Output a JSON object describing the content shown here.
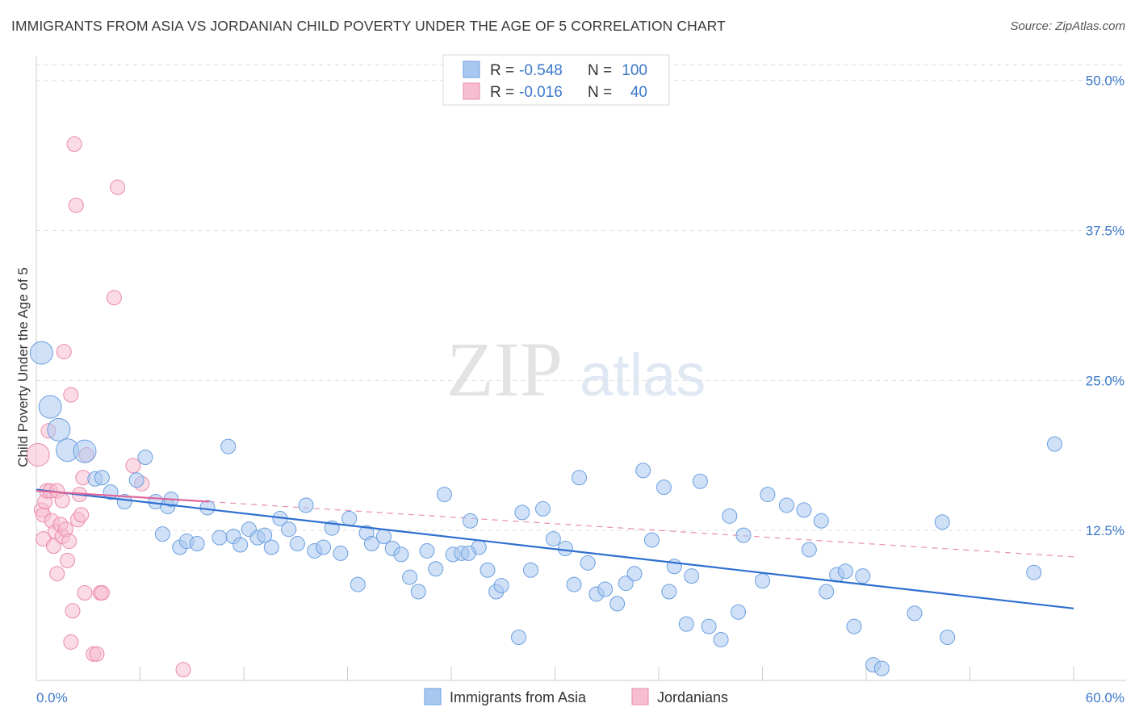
{
  "title": "IMMIGRANTS FROM ASIA VS JORDANIAN CHILD POVERTY UNDER THE AGE OF 5 CORRELATION CHART",
  "source": "Source: ZipAtlas.com",
  "watermark": {
    "zip": "ZIP",
    "atlas": "atlas"
  },
  "colors": {
    "blue_fill": "#a9c8f0",
    "blue_stroke": "#6a9fe0",
    "blue_line": "#2f6fd0",
    "pink_fill": "#f7bdd0",
    "pink_stroke": "#ea8aab",
    "pink_line": "#e0679a",
    "tick_text": "#3b78c9",
    "grid": "#dddddd"
  },
  "legend_box": {
    "rows": [
      {
        "r_label": "R =",
        "r_value": "-0.548",
        "n_label": "N =",
        "n_value": "100"
      },
      {
        "r_label": "R =",
        "r_value": "-0.016",
        "n_label": "N =",
        "n_value": "40"
      }
    ]
  },
  "bottom_legend": [
    {
      "label": "Immigrants from Asia"
    },
    {
      "label": "Jordanians"
    }
  ],
  "chart_data": {
    "type": "scatter",
    "title": "IMMIGRANTS FROM ASIA VS JORDANIAN CHILD POVERTY UNDER THE AGE OF 5 CORRELATION CHART",
    "xlabel": "",
    "ylabel": "Child Poverty Under the Age of 5",
    "xlim": [
      0,
      60
    ],
    "ylim": [
      0,
      52
    ],
    "x_tick_labels": [
      {
        "value": 0,
        "label": "0.0%"
      },
      {
        "value": 60,
        "label": "60.0%"
      }
    ],
    "y_tick_labels": [
      {
        "value": 12.5,
        "label": "12.5%"
      },
      {
        "value": 25,
        "label": "25.0%"
      },
      {
        "value": 37.5,
        "label": "37.5%"
      },
      {
        "value": 50,
        "label": "50.0%"
      }
    ],
    "series": [
      {
        "name": "Immigrants from Asia",
        "r": -0.548,
        "n": 100,
        "trend": {
          "x0": 0,
          "y0": 15.9,
          "x1": 60,
          "y1": 6.0,
          "dashed_extension": false
        },
        "points": [
          {
            "x": 0.3,
            "y": 27.3,
            "s": 2
          },
          {
            "x": 0.8,
            "y": 22.8,
            "s": 2
          },
          {
            "x": 1.3,
            "y": 20.9,
            "s": 2
          },
          {
            "x": 1.8,
            "y": 19.2,
            "s": 2
          },
          {
            "x": 2.8,
            "y": 19.1,
            "s": 2
          },
          {
            "x": 3.4,
            "y": 16.8,
            "s": 1
          },
          {
            "x": 3.8,
            "y": 16.9,
            "s": 1
          },
          {
            "x": 4.3,
            "y": 15.7,
            "s": 1
          },
          {
            "x": 5.1,
            "y": 14.9,
            "s": 1
          },
          {
            "x": 5.8,
            "y": 16.7,
            "s": 1
          },
          {
            "x": 6.3,
            "y": 18.6,
            "s": 1
          },
          {
            "x": 6.9,
            "y": 14.9,
            "s": 1
          },
          {
            "x": 7.3,
            "y": 12.2,
            "s": 1
          },
          {
            "x": 7.6,
            "y": 14.5,
            "s": 1
          },
          {
            "x": 7.8,
            "y": 15.1,
            "s": 1
          },
          {
            "x": 8.3,
            "y": 11.1,
            "s": 1
          },
          {
            "x": 8.7,
            "y": 11.6,
            "s": 1
          },
          {
            "x": 9.3,
            "y": 11.4,
            "s": 1
          },
          {
            "x": 9.9,
            "y": 14.4,
            "s": 1
          },
          {
            "x": 10.6,
            "y": 11.9,
            "s": 1
          },
          {
            "x": 11.1,
            "y": 19.5,
            "s": 1
          },
          {
            "x": 11.4,
            "y": 12.0,
            "s": 1
          },
          {
            "x": 11.8,
            "y": 11.3,
            "s": 1
          },
          {
            "x": 12.3,
            "y": 12.6,
            "s": 1
          },
          {
            "x": 12.8,
            "y": 11.9,
            "s": 1
          },
          {
            "x": 13.2,
            "y": 12.1,
            "s": 1
          },
          {
            "x": 13.6,
            "y": 11.1,
            "s": 1
          },
          {
            "x": 14.1,
            "y": 13.5,
            "s": 1
          },
          {
            "x": 14.6,
            "y": 12.6,
            "s": 1
          },
          {
            "x": 15.1,
            "y": 11.4,
            "s": 1
          },
          {
            "x": 15.6,
            "y": 14.6,
            "s": 1
          },
          {
            "x": 16.1,
            "y": 10.8,
            "s": 1
          },
          {
            "x": 16.6,
            "y": 11.1,
            "s": 1
          },
          {
            "x": 17.1,
            "y": 12.7,
            "s": 1
          },
          {
            "x": 17.6,
            "y": 10.6,
            "s": 1
          },
          {
            "x": 18.1,
            "y": 13.5,
            "s": 1
          },
          {
            "x": 18.6,
            "y": 8.0,
            "s": 1
          },
          {
            "x": 19.1,
            "y": 12.3,
            "s": 1
          },
          {
            "x": 19.4,
            "y": 11.4,
            "s": 1
          },
          {
            "x": 20.1,
            "y": 12.0,
            "s": 1
          },
          {
            "x": 20.6,
            "y": 11.0,
            "s": 1
          },
          {
            "x": 21.1,
            "y": 10.5,
            "s": 1
          },
          {
            "x": 21.6,
            "y": 8.6,
            "s": 1
          },
          {
            "x": 22.1,
            "y": 7.4,
            "s": 1
          },
          {
            "x": 22.6,
            "y": 10.8,
            "s": 1
          },
          {
            "x": 23.1,
            "y": 9.3,
            "s": 1
          },
          {
            "x": 23.6,
            "y": 15.5,
            "s": 1
          },
          {
            "x": 24.1,
            "y": 10.5,
            "s": 1
          },
          {
            "x": 24.6,
            "y": 10.6,
            "s": 1
          },
          {
            "x": 25.1,
            "y": 13.3,
            "s": 1
          },
          {
            "x": 25.6,
            "y": 11.1,
            "s": 1
          },
          {
            "x": 26.1,
            "y": 9.2,
            "s": 1
          },
          {
            "x": 26.6,
            "y": 7.4,
            "s": 1
          },
          {
            "x": 26.9,
            "y": 7.9,
            "s": 1
          },
          {
            "x": 27.9,
            "y": 3.6,
            "s": 1
          },
          {
            "x": 28.1,
            "y": 14.0,
            "s": 1
          },
          {
            "x": 28.6,
            "y": 9.2,
            "s": 1
          },
          {
            "x": 29.3,
            "y": 14.3,
            "s": 1
          },
          {
            "x": 29.9,
            "y": 11.8,
            "s": 1
          },
          {
            "x": 30.6,
            "y": 11.0,
            "s": 1
          },
          {
            "x": 31.1,
            "y": 8.0,
            "s": 1
          },
          {
            "x": 31.4,
            "y": 16.9,
            "s": 1
          },
          {
            "x": 31.9,
            "y": 9.8,
            "s": 1
          },
          {
            "x": 32.4,
            "y": 7.2,
            "s": 1
          },
          {
            "x": 32.9,
            "y": 7.6,
            "s": 1
          },
          {
            "x": 33.6,
            "y": 6.4,
            "s": 1
          },
          {
            "x": 34.1,
            "y": 8.1,
            "s": 1
          },
          {
            "x": 34.6,
            "y": 8.9,
            "s": 1
          },
          {
            "x": 35.1,
            "y": 17.5,
            "s": 1
          },
          {
            "x": 35.6,
            "y": 11.7,
            "s": 1
          },
          {
            "x": 36.3,
            "y": 16.1,
            "s": 1
          },
          {
            "x": 36.6,
            "y": 7.4,
            "s": 1
          },
          {
            "x": 36.9,
            "y": 9.5,
            "s": 1
          },
          {
            "x": 37.6,
            "y": 4.7,
            "s": 1
          },
          {
            "x": 37.9,
            "y": 8.7,
            "s": 1
          },
          {
            "x": 38.4,
            "y": 16.6,
            "s": 1
          },
          {
            "x": 38.9,
            "y": 4.5,
            "s": 1
          },
          {
            "x": 39.6,
            "y": 3.4,
            "s": 1
          },
          {
            "x": 40.1,
            "y": 13.7,
            "s": 1
          },
          {
            "x": 40.6,
            "y": 5.7,
            "s": 1
          },
          {
            "x": 40.9,
            "y": 12.1,
            "s": 1
          },
          {
            "x": 42.0,
            "y": 8.3,
            "s": 1
          },
          {
            "x": 42.3,
            "y": 15.5,
            "s": 1
          },
          {
            "x": 43.4,
            "y": 14.6,
            "s": 1
          },
          {
            "x": 44.4,
            "y": 14.2,
            "s": 1
          },
          {
            "x": 44.7,
            "y": 10.9,
            "s": 1
          },
          {
            "x": 45.4,
            "y": 13.3,
            "s": 1
          },
          {
            "x": 45.7,
            "y": 7.4,
            "s": 1
          },
          {
            "x": 46.3,
            "y": 8.8,
            "s": 1
          },
          {
            "x": 46.8,
            "y": 9.1,
            "s": 1
          },
          {
            "x": 47.3,
            "y": 4.5,
            "s": 1
          },
          {
            "x": 47.8,
            "y": 8.7,
            "s": 1
          },
          {
            "x": 48.4,
            "y": 1.3,
            "s": 1
          },
          {
            "x": 48.9,
            "y": 1.0,
            "s": 1
          },
          {
            "x": 50.8,
            "y": 5.6,
            "s": 1
          },
          {
            "x": 52.4,
            "y": 13.2,
            "s": 1
          },
          {
            "x": 52.7,
            "y": 3.6,
            "s": 1
          },
          {
            "x": 57.7,
            "y": 9.0,
            "s": 1
          },
          {
            "x": 58.9,
            "y": 19.7,
            "s": 1
          },
          {
            "x": 25.0,
            "y": 10.6,
            "s": 1
          }
        ]
      },
      {
        "name": "Jordanians",
        "r": -0.016,
        "n": 40,
        "trend": {
          "x0": 0,
          "y0": 15.8,
          "x1": 10,
          "y1": 14.9,
          "dashed_to_x": 60,
          "dashed_to_y": 10.3
        },
        "points": [
          {
            "x": 0.1,
            "y": 18.8,
            "s": 2
          },
          {
            "x": 0.3,
            "y": 14.2,
            "s": 1
          },
          {
            "x": 0.4,
            "y": 13.8,
            "s": 1
          },
          {
            "x": 0.4,
            "y": 11.8,
            "s": 1
          },
          {
            "x": 0.5,
            "y": 14.9,
            "s": 1
          },
          {
            "x": 0.6,
            "y": 15.8,
            "s": 1
          },
          {
            "x": 0.7,
            "y": 20.8,
            "s": 1
          },
          {
            "x": 0.8,
            "y": 15.8,
            "s": 1
          },
          {
            "x": 0.9,
            "y": 13.3,
            "s": 1
          },
          {
            "x": 1.0,
            "y": 11.2,
            "s": 1
          },
          {
            "x": 1.1,
            "y": 12.4,
            "s": 1
          },
          {
            "x": 1.2,
            "y": 15.8,
            "s": 1
          },
          {
            "x": 1.2,
            "y": 8.9,
            "s": 1
          },
          {
            "x": 1.4,
            "y": 13.0,
            "s": 1
          },
          {
            "x": 1.5,
            "y": 12.0,
            "s": 1
          },
          {
            "x": 1.5,
            "y": 15.0,
            "s": 1
          },
          {
            "x": 1.6,
            "y": 27.4,
            "s": 1
          },
          {
            "x": 1.7,
            "y": 12.6,
            "s": 1
          },
          {
            "x": 1.8,
            "y": 10.0,
            "s": 1
          },
          {
            "x": 1.9,
            "y": 11.6,
            "s": 1
          },
          {
            "x": 2.0,
            "y": 23.8,
            "s": 1
          },
          {
            "x": 2.0,
            "y": 3.2,
            "s": 1
          },
          {
            "x": 2.1,
            "y": 5.8,
            "s": 1
          },
          {
            "x": 2.2,
            "y": 44.7,
            "s": 1
          },
          {
            "x": 2.3,
            "y": 39.6,
            "s": 1
          },
          {
            "x": 2.4,
            "y": 13.4,
            "s": 1
          },
          {
            "x": 2.5,
            "y": 15.5,
            "s": 1
          },
          {
            "x": 2.6,
            "y": 13.8,
            "s": 1
          },
          {
            "x": 2.7,
            "y": 16.9,
            "s": 1
          },
          {
            "x": 2.8,
            "y": 7.3,
            "s": 1
          },
          {
            "x": 2.9,
            "y": 18.8,
            "s": 1
          },
          {
            "x": 3.3,
            "y": 2.2,
            "s": 1
          },
          {
            "x": 3.5,
            "y": 2.2,
            "s": 1
          },
          {
            "x": 3.7,
            "y": 7.3,
            "s": 1
          },
          {
            "x": 3.8,
            "y": 7.3,
            "s": 1
          },
          {
            "x": 4.5,
            "y": 31.9,
            "s": 1
          },
          {
            "x": 4.7,
            "y": 41.1,
            "s": 1
          },
          {
            "x": 5.6,
            "y": 17.9,
            "s": 1
          },
          {
            "x": 6.1,
            "y": 16.4,
            "s": 1
          },
          {
            "x": 8.5,
            "y": 0.9,
            "s": 1
          }
        ]
      }
    ]
  }
}
